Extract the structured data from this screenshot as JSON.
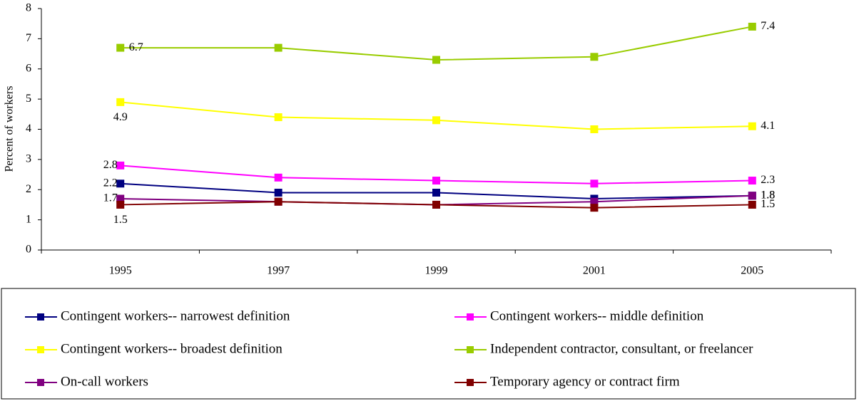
{
  "chart_data": {
    "type": "line",
    "y_label": "Percent of workers",
    "categories": [
      "1995",
      "1997",
      "1999",
      "2001",
      "2005"
    ],
    "series": [
      {
        "name": "Contingent workers-- narrowest definition",
        "color": "#000080",
        "values": [
          2.2,
          1.9,
          1.9,
          1.7,
          1.8
        ]
      },
      {
        "name": "Contingent workers-- middle definition",
        "color": "#ff00ff",
        "values": [
          2.8,
          2.4,
          2.3,
          2.2,
          2.3
        ]
      },
      {
        "name": "Contingent workers-- broadest definition",
        "color": "#ffff00",
        "values": [
          4.9,
          4.4,
          4.3,
          4.0,
          4.1
        ]
      },
      {
        "name": "Independent contractor, consultant, or freelancer",
        "color": "#99cc00",
        "values": [
          6.7,
          6.7,
          6.3,
          6.4,
          7.4
        ]
      },
      {
        "name": "On-call workers",
        "color": "#800080",
        "values": [
          1.7,
          1.6,
          1.5,
          1.6,
          1.8
        ]
      },
      {
        "name": "Temporary agency or contract firm",
        "color": "#800000",
        "values": [
          1.5,
          1.6,
          1.5,
          1.4,
          1.5
        ]
      }
    ],
    "ylim": [
      0,
      8
    ],
    "yticks": [
      0,
      1,
      2,
      3,
      4,
      5,
      6,
      7,
      8
    ],
    "grid": false,
    "legend": "bottom"
  }
}
